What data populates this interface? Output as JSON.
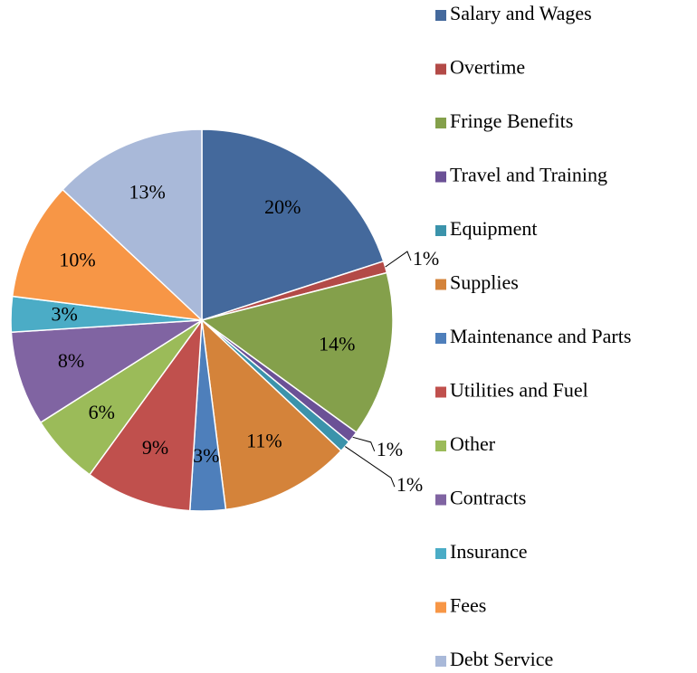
{
  "chart_data": {
    "type": "pie",
    "categories": [
      "Salary and Wages",
      "Overtime",
      "Fringe Benefits",
      "Travel and Training",
      "Equipment",
      "Supplies",
      "Maintenance and Parts",
      "Utilities and Fuel",
      "Other",
      "Contracts",
      "Insurance",
      "Fees",
      "Debt Service"
    ],
    "values": [
      20,
      1,
      14,
      1,
      1,
      11,
      3,
      9,
      6,
      8,
      3,
      10,
      13
    ],
    "value_labels": [
      "20%",
      "1%",
      "14%",
      "1%",
      "1%",
      "11%",
      "3%",
      "9%",
      "6%",
      "8%",
      "3%",
      "10%",
      "13%"
    ],
    "colors": [
      "#44699c",
      "#b34a47",
      "#84a04b",
      "#6b5196",
      "#3b93ab",
      "#d4833a",
      "#4e7fbb",
      "#c0504d",
      "#9bbb59",
      "#8064a2",
      "#4bacc6",
      "#f79646",
      "#a9b9d9"
    ],
    "legend": "right"
  }
}
